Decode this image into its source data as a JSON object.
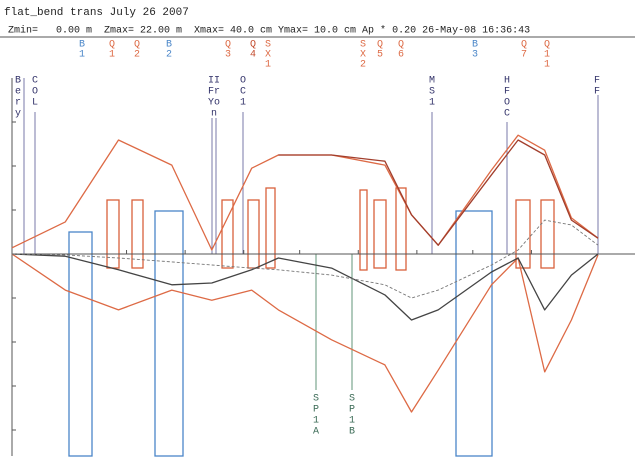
{
  "chart_data": {
    "type": "line",
    "title": "flat_bend trans July 26 2007",
    "subtitle": "Zmin=   0.00 m  Zmax= 22.00 m  Xmax= 40.0 cm Ymax= 10.0 cm Ap * 0.20 26-May-08 16:36:43",
    "x": [
      0,
      2,
      4,
      6,
      7.5,
      9,
      10,
      12,
      14,
      15,
      16,
      18,
      19,
      20,
      21,
      22
    ],
    "xlim": [
      0,
      22
    ],
    "ylim": [
      -46,
      40
    ],
    "yticks": [
      -40,
      -30,
      -20,
      -10,
      0,
      10,
      20,
      30
    ],
    "xticks": [
      4.3,
      6.5,
      8.7,
      10.8,
      13.0,
      15.2,
      17.3,
      19.5
    ],
    "series": [
      {
        "color": "#dd6a45",
        "values": [
          1.4,
          7.3,
          25.9,
          20.2,
          0.9,
          19.5,
          22.5,
          22.5,
          20.2,
          8.9,
          2.0,
          19.1,
          27.0,
          23.6,
          8.2,
          3.6
        ]
      },
      {
        "color": "#a23e2c",
        "values": [
          null,
          null,
          null,
          null,
          null,
          null,
          22.5,
          22.5,
          21.1,
          8.9,
          2.0,
          18.0,
          25.9,
          22.5,
          7.7,
          3.6
        ]
      },
      {
        "color": "#dd6a45",
        "values": [
          0,
          -8.2,
          -12.7,
          -8.2,
          -10.5,
          -8.2,
          -12.7,
          -19.5,
          -25.2,
          -35.9,
          -26.4,
          -7.0,
          -0.9,
          -26.8,
          -15.0,
          -0.2
        ]
      },
      {
        "color": "#444444",
        "values": [
          0,
          -0.5,
          -3.6,
          -7.0,
          -6.6,
          -3.6,
          -0.9,
          -3.2,
          -9.3,
          -15.0,
          -12.7,
          -4.1,
          -0.9,
          -12.7,
          -4.8,
          0
        ]
      },
      {
        "color": "#777777",
        "dash": true,
        "values": [
          0,
          -0.2,
          -0.9,
          -1.8,
          -2.5,
          -3.2,
          -3.6,
          -4.8,
          -7.0,
          -10.0,
          -8.2,
          -2.5,
          0.9,
          7.7,
          6.6,
          2.0
        ]
      }
    ],
    "element_labels": [
      {
        "lines": [
          "B",
          "1"
        ],
        "color": "#4a86c8"
      },
      {
        "lines": [
          "Q",
          "1"
        ],
        "color": "#dd6a45"
      },
      {
        "lines": [
          "Q",
          "2"
        ],
        "color": "#dd6a45"
      },
      {
        "lines": [
          "B",
          "2"
        ],
        "color": "#4a86c8"
      },
      {
        "lines": [
          "Q",
          "3"
        ],
        "color": "#dd6a45"
      },
      {
        "lines": [
          "Q",
          "4"
        ],
        "color": "#c24a2c"
      },
      {
        "lines": [
          "S",
          "X",
          "1"
        ],
        "color": "#dd6a45"
      },
      {
        "lines": [
          "S",
          "X",
          "2"
        ],
        "color": "#dd6a45"
      },
      {
        "lines": [
          "Q",
          "5"
        ],
        "color": "#dd6a45"
      },
      {
        "lines": [
          "Q",
          "6"
        ],
        "color": "#dd6a45"
      },
      {
        "lines": [
          "B",
          "3"
        ],
        "color": "#4a86c8"
      },
      {
        "lines": [
          "Q",
          "7"
        ],
        "color": "#dd6a45"
      },
      {
        "lines": [
          "Q",
          "1",
          "1"
        ],
        "color": "#dd6a45"
      }
    ],
    "marker_labels": [
      {
        "lines": [
          "B",
          "e",
          "r",
          "y"
        ]
      },
      {
        "lines": [
          "C",
          "O",
          "L"
        ]
      },
      {
        "lines": [
          "II",
          "Fr",
          "Yo",
          "n"
        ]
      },
      {
        "lines": [
          "O",
          "C",
          "1"
        ]
      },
      {
        "lines": [
          "M",
          "S",
          "1"
        ]
      },
      {
        "lines": [
          "H",
          "F",
          "O",
          "C"
        ]
      },
      {
        "lines": [
          "F",
          "F"
        ]
      }
    ],
    "lower_labels": [
      {
        "lines": [
          "S",
          "P",
          "1",
          "A"
        ]
      },
      {
        "lines": [
          "S",
          "P",
          "1",
          "B"
        ]
      }
    ]
  }
}
